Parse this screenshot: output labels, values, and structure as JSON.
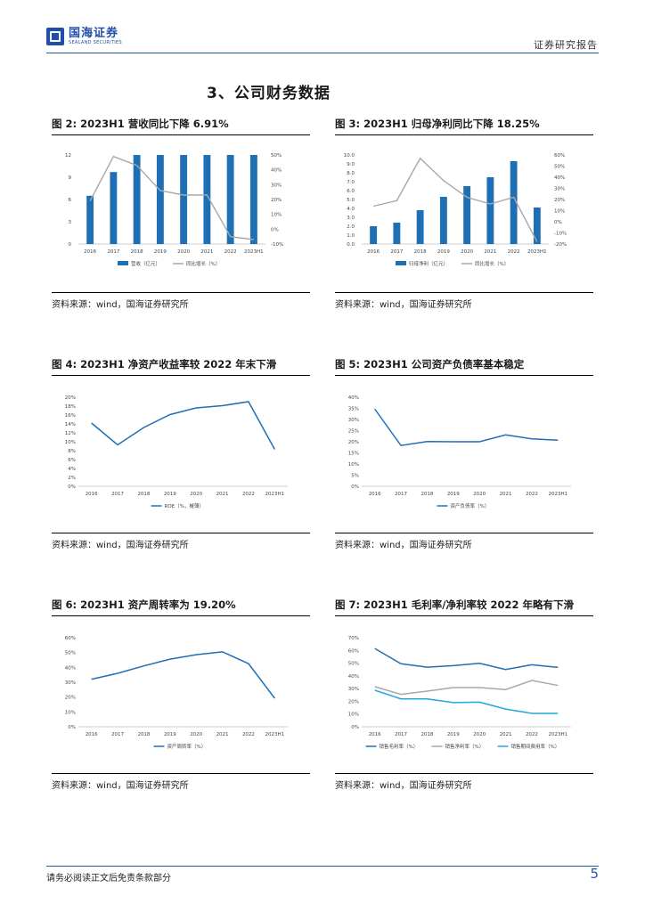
{
  "header": {
    "logo_cn": "国海证券",
    "logo_en": "SEALAND SECURITIES",
    "report_type": "证券研究报告"
  },
  "section_title": "3、公司财务数据",
  "source_text": "资料来源：wind，国海证券研究所",
  "footer": {
    "disclaimer": "请务必阅读正文后免责条款部分",
    "page": "5"
  },
  "colors": {
    "blue": "#1f6fb5",
    "grey": "#a8a8a8",
    "light_blue": "#22a7e0"
  },
  "figures": [
    {
      "label": "图 2:",
      "title": "2023H1 营收同比下降 6.91%"
    },
    {
      "label": "图 3:",
      "title": "2023H1 归母净利同比下降 18.25%"
    },
    {
      "label": "图 4:",
      "title": "2023H1 净资产收益率较 2022 年末下滑"
    },
    {
      "label": "图 5:",
      "title": "2023H1 公司资产负债率基本稳定"
    },
    {
      "label": "图 6:",
      "title": "2023H1 资产周转率为 19.20%"
    },
    {
      "label": "图 7:",
      "title": "2023H1 毛利率/净利率较 2022 年略有下滑"
    }
  ],
  "chart_data": [
    {
      "type": "bar+line",
      "title": "2023H1 营收同比下降 6.91%",
      "categories": [
        "2016",
        "2017",
        "2018",
        "2019",
        "2020",
        "2021",
        "2022",
        "2023H1"
      ],
      "bar_series": {
        "name": "营收（亿元）",
        "values": [
          6.5,
          9.7,
          12,
          12,
          12,
          12,
          12,
          12
        ]
      },
      "line_series": {
        "name": "同比增长（%）",
        "values": [
          19,
          49,
          43,
          26,
          23,
          23,
          -5,
          -7
        ]
      },
      "ylim_left": [
        0,
        12
      ],
      "yticks_left": [
        0,
        3,
        6,
        9,
        12
      ],
      "ylim_right": [
        -10,
        50
      ],
      "yticks_right": [
        "-10%",
        "0%",
        "10%",
        "20%",
        "30%",
        "40%",
        "50%"
      ]
    },
    {
      "type": "bar+line",
      "title": "2023H1 归母净利同比下降 18.25%",
      "categories": [
        "2016",
        "2017",
        "2018",
        "2019",
        "2020",
        "2021",
        "2022",
        "2023H1"
      ],
      "bar_series": {
        "name": "归母净利（亿元）",
        "values": [
          2.0,
          2.4,
          3.8,
          5.3,
          6.5,
          7.5,
          9.3,
          4.1
        ]
      },
      "line_series": {
        "name": "同比增长（%）",
        "values": [
          14,
          19,
          57,
          37,
          22,
          16,
          22,
          -18
        ]
      },
      "ylim_left": [
        0,
        10
      ],
      "yticks_left": [
        "0.0",
        "1.0",
        "2.0",
        "3.0",
        "4.0",
        "5.0",
        "6.0",
        "7.0",
        "8.0",
        "9.0",
        "10.0"
      ],
      "ylim_right": [
        -20,
        60
      ],
      "yticks_right": [
        "-20%",
        "-10%",
        "0%",
        "10%",
        "20%",
        "30%",
        "40%",
        "50%",
        "60%"
      ]
    },
    {
      "type": "line",
      "title": "2023H1 净资产收益率较 2022 年末下滑",
      "categories": [
        "2016",
        "2017",
        "2018",
        "2019",
        "2020",
        "2021",
        "2022",
        "2023H1"
      ],
      "series": [
        {
          "name": "ROE（%，摊薄）",
          "values": [
            14.2,
            9.3,
            13.2,
            16.1,
            17.6,
            18.1,
            19.0,
            8.3
          ]
        }
      ],
      "ylim": [
        0,
        20
      ],
      "yticks": [
        "0%",
        "2%",
        "4%",
        "6%",
        "8%",
        "10%",
        "12%",
        "14%",
        "16%",
        "18%",
        "20%"
      ]
    },
    {
      "type": "line",
      "title": "2023H1 公司资产负债率基本稳定",
      "categories": [
        "2016",
        "2017",
        "2018",
        "2019",
        "2020",
        "2021",
        "2022",
        "2023H1"
      ],
      "series": [
        {
          "name": "资产负债率（%）",
          "values": [
            34.7,
            18.3,
            20.1,
            20.0,
            20.0,
            23.1,
            21.3,
            20.7
          ]
        }
      ],
      "ylim": [
        0,
        40
      ],
      "yticks": [
        "0%",
        "5%",
        "10%",
        "15%",
        "20%",
        "25%",
        "30%",
        "35%",
        "40%"
      ]
    },
    {
      "type": "line",
      "title": "2023H1 资产周转率为 19.20%",
      "categories": [
        "2016",
        "2017",
        "2018",
        "2019",
        "2020",
        "2021",
        "2022",
        "2023H1"
      ],
      "series": [
        {
          "name": "资产周转率（%）",
          "values": [
            32,
            36,
            41,
            45.5,
            48.5,
            50.5,
            42.5,
            19.2
          ]
        }
      ],
      "ylim": [
        0,
        60
      ],
      "yticks": [
        "0%",
        "10%",
        "20%",
        "30%",
        "40%",
        "50%",
        "60%"
      ]
    },
    {
      "type": "line",
      "title": "2023H1 毛利率/净利率较 2022 年略有下滑",
      "categories": [
        "2016",
        "2017",
        "2018",
        "2019",
        "2020",
        "2021",
        "2022",
        "2023H1"
      ],
      "series": [
        {
          "name": "销售毛利率（%）",
          "values": [
            61.5,
            49.5,
            46.8,
            48.0,
            49.9,
            45.0,
            48.7,
            46.6
          ]
        },
        {
          "name": "销售净利率（%）",
          "values": [
            31.5,
            25.5,
            28.0,
            30.8,
            30.8,
            29.2,
            36.4,
            32.5
          ]
        },
        {
          "name": "销售期间费用率（%）",
          "values": [
            28.7,
            21.9,
            21.9,
            19.0,
            19.3,
            13.9,
            10.5,
            10.5
          ]
        }
      ],
      "ylim": [
        0,
        70
      ],
      "yticks": [
        "0%",
        "10%",
        "20%",
        "30%",
        "40%",
        "50%",
        "60%",
        "70%"
      ]
    }
  ]
}
